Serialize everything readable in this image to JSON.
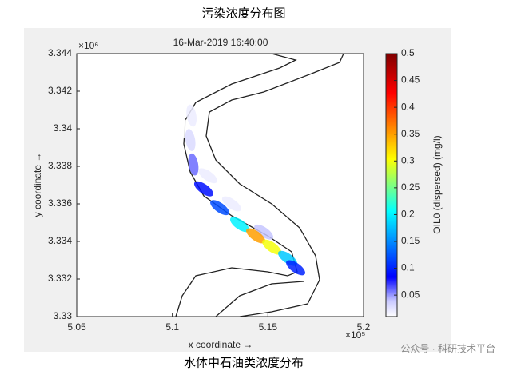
{
  "header": {
    "caption_top": "污染浓度分布图"
  },
  "chart_data": {
    "type": "plume",
    "title": "16-Mar-2019 16:40:00",
    "x_label": "x coordinate →",
    "y_label": "y coordinate →",
    "x_exponent": "×10⁵",
    "y_exponent": "×10⁶",
    "xlim": [
      5.05,
      5.2
    ],
    "xticks": [
      5.05,
      5.1,
      5.15,
      5.2
    ],
    "ylim": [
      3.33,
      3.344
    ],
    "yticks": [
      3.33,
      3.332,
      3.334,
      3.336,
      3.338,
      3.34,
      3.342,
      3.344
    ],
    "colorbar_label": "OIL0 (dispersed) (mg/l)",
    "clim": [
      0.01,
      0.5
    ],
    "cticks": [
      0.05,
      0.1,
      0.15,
      0.2,
      0.25,
      0.3,
      0.35,
      0.4,
      0.45,
      0.5
    ],
    "colormap": "jet",
    "x": [
      5.1056,
      5.11,
      5.1094,
      5.111,
      5.1185,
      5.1164,
      5.131,
      5.1248,
      5.1352,
      5.1478,
      5.1436,
      5.152,
      5.1603,
      5.1645
    ],
    "y": [
      3.3401,
      3.3407,
      3.3394,
      3.3381,
      3.3375,
      3.3368,
      3.336,
      3.3358,
      3.3349,
      3.3345,
      3.3343,
      3.3337,
      3.3331,
      3.3326
    ],
    "values": [
      0.01,
      0.02,
      0.03,
      0.06,
      0.02,
      0.09,
      0.02,
      0.12,
      0.2,
      0.04,
      0.35,
      0.3,
      0.18,
      0.1
    ]
  },
  "footer": {
    "caption_bottom": "水体中石油类浓度分布",
    "watermark": "公众号 · 科研技术平台"
  }
}
